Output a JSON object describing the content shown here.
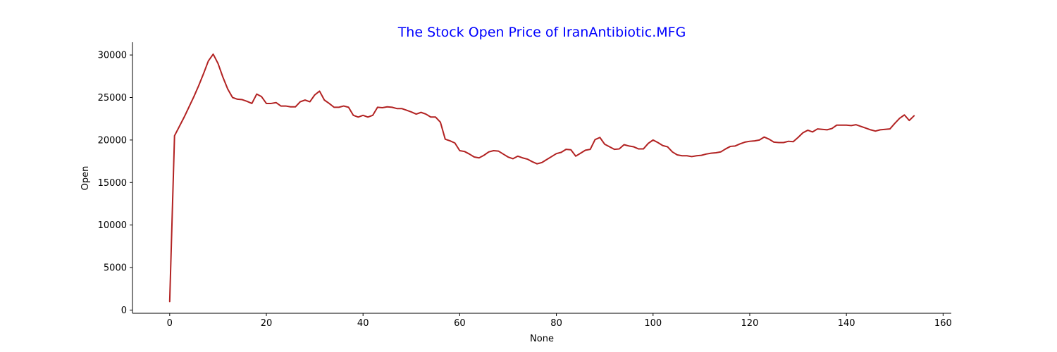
{
  "chart_data": {
    "type": "line",
    "title": "The Stock Open Price of IranAntibiotic.MFG",
    "title_color": "#0000ff",
    "xlabel": "None",
    "ylabel": "Open",
    "xlim": [
      -7.7,
      161.7
    ],
    "ylim": [
      -380,
      31500
    ],
    "xticks": [
      0,
      20,
      40,
      60,
      80,
      100,
      120,
      140,
      160
    ],
    "yticks": [
      0,
      5000,
      10000,
      15000,
      20000,
      25000,
      30000
    ],
    "grid": false,
    "series": [
      {
        "color": "#b22222",
        "x": [
          0,
          1,
          2,
          3,
          4,
          5,
          6,
          7,
          8,
          9,
          10,
          11,
          12,
          13,
          14,
          15,
          16,
          17,
          18,
          19,
          20,
          21,
          22,
          23,
          24,
          25,
          26,
          27,
          28,
          29,
          30,
          31,
          32,
          33,
          34,
          35,
          36,
          37,
          38,
          39,
          40,
          41,
          42,
          43,
          44,
          45,
          46,
          47,
          48,
          49,
          50,
          51,
          52,
          53,
          54,
          55,
          56,
          57,
          58,
          59,
          60,
          61,
          62,
          63,
          64,
          65,
          66,
          67,
          68,
          69,
          70,
          71,
          72,
          73,
          74,
          75,
          76,
          77,
          78,
          79,
          80,
          81,
          82,
          83,
          84,
          85,
          86,
          87,
          88,
          89,
          90,
          91,
          92,
          93,
          94,
          95,
          96,
          97,
          98,
          99,
          100,
          101,
          102,
          103,
          104,
          105,
          106,
          107,
          108,
          109,
          110,
          111,
          112,
          113,
          114,
          115,
          116,
          117,
          118,
          119,
          120,
          121,
          122,
          123,
          124,
          125,
          126,
          127,
          128,
          129,
          130,
          131,
          132,
          133,
          134,
          135,
          136,
          137,
          138,
          139,
          140,
          141,
          142,
          143,
          144,
          145,
          146,
          147,
          148,
          149,
          150,
          151,
          152,
          153,
          154
        ],
        "y": [
          1000,
          20500,
          21600,
          22700,
          23900,
          25100,
          26400,
          27800,
          29300,
          30100,
          29000,
          27400,
          26000,
          25000,
          24800,
          24750,
          24550,
          24300,
          25400,
          25100,
          24300,
          24300,
          24400,
          24000,
          24000,
          23900,
          23900,
          24500,
          24700,
          24500,
          25300,
          25750,
          24700,
          24300,
          23850,
          23850,
          24000,
          23850,
          22900,
          22700,
          22900,
          22700,
          22900,
          23850,
          23800,
          23900,
          23850,
          23700,
          23700,
          23500,
          23300,
          23050,
          23250,
          23050,
          22700,
          22700,
          22100,
          20100,
          19900,
          19650,
          18750,
          18650,
          18350,
          18000,
          17900,
          18200,
          18600,
          18750,
          18700,
          18350,
          18000,
          17800,
          18100,
          17900,
          17750,
          17450,
          17200,
          17350,
          17700,
          18050,
          18400,
          18550,
          18900,
          18850,
          18100,
          18450,
          18800,
          18900,
          20050,
          20300,
          19500,
          19200,
          18900,
          18950,
          19450,
          19300,
          19200,
          18950,
          18950,
          19600,
          20000,
          19700,
          19350,
          19200,
          18600,
          18250,
          18150,
          18150,
          18050,
          18150,
          18200,
          18350,
          18450,
          18500,
          18600,
          18950,
          19250,
          19300,
          19550,
          19750,
          19850,
          19900,
          20000,
          20350,
          20100,
          19750,
          19700,
          19700,
          19850,
          19800,
          20300,
          20850,
          21150,
          20950,
          21300,
          21250,
          21200,
          21350,
          21750,
          21750,
          21750,
          21700,
          21800,
          21600,
          21400,
          21200,
          21050,
          21200,
          21250,
          21300,
          21950,
          22550,
          22950,
          22300,
          22850
        ]
      }
    ]
  }
}
